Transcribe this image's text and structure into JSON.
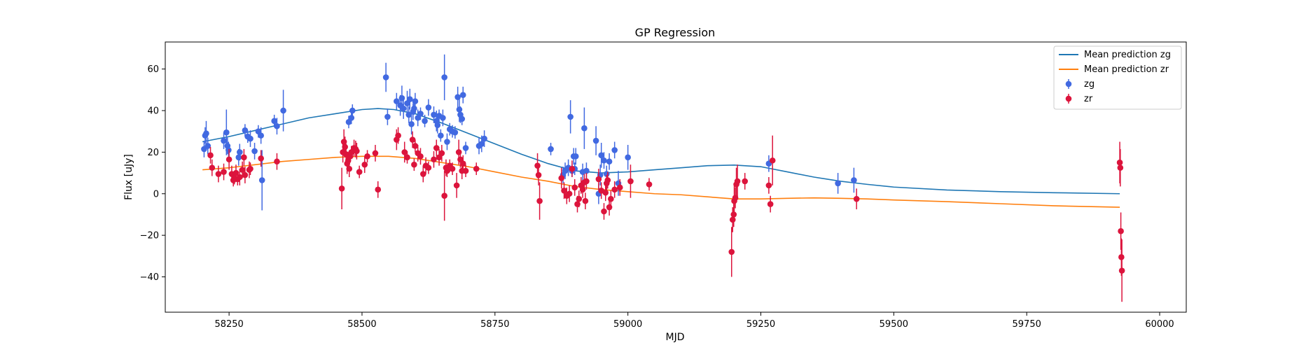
{
  "chart_data": {
    "type": "scatter",
    "title": "GP Regression",
    "xlabel": "MJD",
    "ylabel": "Flux [uJy]",
    "xlim": [
      58130,
      60050
    ],
    "ylim": [
      -57,
      73
    ],
    "xticks": [
      58250,
      58500,
      58750,
      59000,
      59250,
      59500,
      59750,
      60000
    ],
    "yticks": [
      -40,
      -20,
      0,
      20,
      40,
      60
    ],
    "grid": false,
    "legend": {
      "position": "top-right",
      "entries": [
        "Mean prediction zg",
        "Mean prediction zr",
        "zg",
        "zr"
      ]
    },
    "colors": {
      "zg_line": "#1f77b4",
      "zr_line": "#ff7f0e",
      "zg_points": "#4169e1",
      "zr_points": "#dc143c"
    },
    "lines": [
      {
        "name": "Mean prediction zg",
        "x": [
          58200,
          58250,
          58300,
          58350,
          58400,
          58450,
          58500,
          58530,
          58560,
          58600,
          58650,
          58700,
          58750,
          58800,
          58850,
          58900,
          58950,
          59000,
          59050,
          59100,
          59150,
          59200,
          59250,
          59300,
          59350,
          59400,
          59450,
          59500,
          59600,
          59700,
          59800,
          59925
        ],
        "y": [
          25,
          27.5,
          30.5,
          33.5,
          36.5,
          38.5,
          40.5,
          41,
          40.5,
          38.5,
          34,
          29,
          24,
          19,
          14.5,
          11,
          10,
          10.5,
          11.5,
          12.5,
          13.5,
          13.8,
          13,
          10.5,
          8,
          6,
          4.5,
          3.2,
          1.8,
          1,
          0.5,
          0
        ]
      },
      {
        "name": "Mean prediction zr",
        "x": [
          58200,
          58250,
          58300,
          58350,
          58400,
          58450,
          58500,
          58550,
          58600,
          58650,
          58700,
          58750,
          58800,
          58850,
          58900,
          58950,
          59000,
          59050,
          59100,
          59150,
          59200,
          59250,
          59300,
          59350,
          59400,
          59450,
          59500,
          59600,
          59700,
          59800,
          59925
        ],
        "y": [
          11.5,
          12.5,
          14,
          15.5,
          16.5,
          17.5,
          18,
          18,
          17,
          15,
          13,
          10.5,
          8,
          6,
          3.5,
          2,
          1,
          0,
          -0.5,
          -1.5,
          -2.5,
          -2.5,
          -2.2,
          -2,
          -2.2,
          -2.5,
          -3,
          -3.8,
          -4.8,
          -5.8,
          -6.5
        ]
      }
    ],
    "series": [
      {
        "name": "zg",
        "points": [
          [
            58203,
            21.5,
            4
          ],
          [
            58205,
            28,
            4
          ],
          [
            58207,
            29,
            6
          ],
          [
            58210,
            23,
            4
          ],
          [
            58240,
            25.5,
            4
          ],
          [
            58245,
            29.5,
            11
          ],
          [
            58247,
            23,
            4
          ],
          [
            58249,
            21,
            4
          ],
          [
            58268,
            17.5,
            4
          ],
          [
            58270,
            20,
            4
          ],
          [
            58280,
            30.5,
            3
          ],
          [
            58285,
            27.5,
            3
          ],
          [
            58290,
            26.5,
            4
          ],
          [
            58298,
            20.5,
            4
          ],
          [
            58305,
            30,
            3
          ],
          [
            58310,
            28,
            4
          ],
          [
            58312,
            6.5,
            14.5
          ],
          [
            58335,
            35,
            3
          ],
          [
            58340,
            32.5,
            4
          ],
          [
            58352,
            40,
            10
          ],
          [
            58475,
            34.5,
            3
          ],
          [
            58480,
            36.5,
            3
          ],
          [
            58482,
            40,
            3
          ],
          [
            58545,
            56,
            7
          ],
          [
            58548,
            37,
            4
          ],
          [
            58565,
            44.5,
            4
          ],
          [
            58572,
            42.5,
            5
          ],
          [
            58575,
            46,
            6
          ],
          [
            58578,
            41,
            5
          ],
          [
            58585,
            43.5,
            6
          ],
          [
            58588,
            38,
            4
          ],
          [
            58590,
            45.5,
            5
          ],
          [
            58593,
            33.5,
            5
          ],
          [
            58596,
            39.5,
            4
          ],
          [
            58598,
            41,
            3
          ],
          [
            58600,
            44.5,
            4
          ],
          [
            58605,
            36.5,
            4
          ],
          [
            58610,
            38.5,
            3
          ],
          [
            58618,
            35,
            3
          ],
          [
            58625,
            41.5,
            4
          ],
          [
            58635,
            38,
            4
          ],
          [
            58640,
            35,
            5
          ],
          [
            58642,
            33,
            4
          ],
          [
            58645,
            37.5,
            3
          ],
          [
            58648,
            28,
            3
          ],
          [
            58652,
            36.5,
            4
          ],
          [
            58655,
            56,
            11
          ],
          [
            58660,
            25,
            4
          ],
          [
            58665,
            31,
            3
          ],
          [
            58670,
            30,
            3
          ],
          [
            58675,
            29.5,
            3
          ],
          [
            58680,
            46.5,
            5
          ],
          [
            58683,
            40.5,
            6
          ],
          [
            58685,
            38,
            4
          ],
          [
            58688,
            36,
            3
          ],
          [
            58690,
            47.5,
            4
          ],
          [
            58695,
            22,
            3
          ],
          [
            58720,
            23,
            4
          ],
          [
            58725,
            24,
            4
          ],
          [
            58730,
            26.5,
            4
          ],
          [
            58855,
            21.5,
            3
          ],
          [
            58878,
            9,
            4
          ],
          [
            58882,
            11,
            4
          ],
          [
            58888,
            12.5,
            4
          ],
          [
            58892,
            37,
            8
          ],
          [
            58895,
            11,
            3
          ],
          [
            58898,
            18,
            4
          ],
          [
            58900,
            12,
            3
          ],
          [
            58902,
            18,
            4
          ],
          [
            58915,
            10.5,
            4
          ],
          [
            58918,
            31.5,
            10
          ],
          [
            58922,
            11,
            4
          ],
          [
            58940,
            25.5,
            7
          ],
          [
            58945,
            0,
            5
          ],
          [
            58948,
            9,
            5
          ],
          [
            58950,
            18.5,
            6
          ],
          [
            58955,
            16,
            4
          ],
          [
            58960,
            9.5,
            4
          ],
          [
            58965,
            15.5,
            4
          ],
          [
            58975,
            21,
            4
          ],
          [
            58982,
            5,
            6
          ],
          [
            59000,
            17.5,
            6
          ],
          [
            59265,
            14.5,
            4
          ],
          [
            59395,
            5,
            5
          ],
          [
            59425,
            6.5,
            6
          ]
        ]
      },
      {
        "name": "zr",
        "points": [
          [
            58215,
            18.5,
            4
          ],
          [
            58218,
            12.5,
            4
          ],
          [
            58230,
            9.5,
            4
          ],
          [
            58240,
            10.5,
            4
          ],
          [
            58250,
            16.5,
            5
          ],
          [
            58255,
            9.5,
            4
          ],
          [
            58258,
            6.5,
            3
          ],
          [
            58260,
            7.5,
            3
          ],
          [
            58263,
            10,
            4
          ],
          [
            58266,
            7,
            3
          ],
          [
            58270,
            8,
            4
          ],
          [
            58275,
            11.5,
            4
          ],
          [
            58278,
            17.5,
            4
          ],
          [
            58280,
            9,
            4
          ],
          [
            58288,
            11.5,
            4
          ],
          [
            58290,
            12,
            3
          ],
          [
            58310,
            17,
            4
          ],
          [
            58340,
            15.5,
            4
          ],
          [
            58462,
            2.5,
            10
          ],
          [
            58464,
            20,
            5
          ],
          [
            58466,
            25,
            6
          ],
          [
            58468,
            22.5,
            5
          ],
          [
            58470,
            19,
            5
          ],
          [
            58472,
            14.5,
            5
          ],
          [
            58474,
            16,
            4
          ],
          [
            58476,
            12,
            4
          ],
          [
            58478,
            18,
            3
          ],
          [
            58480,
            20,
            3
          ],
          [
            58485,
            22,
            4
          ],
          [
            58488,
            21.5,
            4
          ],
          [
            58490,
            20.5,
            4
          ],
          [
            58495,
            10.5,
            3
          ],
          [
            58505,
            14,
            4
          ],
          [
            58510,
            18,
            3
          ],
          [
            58525,
            19.5,
            4
          ],
          [
            58530,
            2,
            4
          ],
          [
            58565,
            26,
            5
          ],
          [
            58568,
            28,
            4
          ],
          [
            58580,
            20,
            5
          ],
          [
            58585,
            17.5,
            3
          ],
          [
            58595,
            26,
            4
          ],
          [
            58598,
            14,
            3
          ],
          [
            58600,
            23,
            3
          ],
          [
            58605,
            19.5,
            4
          ],
          [
            58610,
            18,
            4
          ],
          [
            58615,
            9.5,
            4
          ],
          [
            58620,
            13.5,
            4
          ],
          [
            58625,
            12.5,
            3
          ],
          [
            58635,
            16.5,
            4
          ],
          [
            58640,
            22,
            4
          ],
          [
            58645,
            17.5,
            4
          ],
          [
            58650,
            19.5,
            4
          ],
          [
            58655,
            -1,
            12
          ],
          [
            58658,
            12.5,
            4
          ],
          [
            58660,
            11,
            3
          ],
          [
            58665,
            13.5,
            3
          ],
          [
            58670,
            12,
            3
          ],
          [
            58678,
            4,
            6
          ],
          [
            58682,
            20,
            6
          ],
          [
            58685,
            16.5,
            4
          ],
          [
            58688,
            11,
            4
          ],
          [
            58690,
            14.5,
            4
          ],
          [
            58695,
            11,
            3
          ],
          [
            58715,
            12,
            3
          ],
          [
            58830,
            13.5,
            6
          ],
          [
            58832,
            9,
            5
          ],
          [
            58834,
            -3.5,
            9
          ],
          [
            58875,
            7.5,
            5
          ],
          [
            58880,
            1.5,
            4
          ],
          [
            58885,
            -1,
            4
          ],
          [
            58890,
            0,
            4
          ],
          [
            58895,
            12,
            4
          ],
          [
            58900,
            3,
            4
          ],
          [
            58905,
            -5,
            4
          ],
          [
            58908,
            -2.5,
            4
          ],
          [
            58912,
            4,
            4
          ],
          [
            58915,
            2,
            4
          ],
          [
            58918,
            5.5,
            4
          ],
          [
            58920,
            -3.5,
            4
          ],
          [
            58922,
            6,
            4
          ],
          [
            58945,
            7,
            5
          ],
          [
            58950,
            1.5,
            4
          ],
          [
            58955,
            -8.5,
            4
          ],
          [
            58958,
            0.5,
            4
          ],
          [
            58960,
            5,
            4
          ],
          [
            58962,
            6.5,
            4
          ],
          [
            58965,
            -6.5,
            4
          ],
          [
            58968,
            -2.5,
            4
          ],
          [
            58975,
            2,
            4
          ],
          [
            58985,
            3,
            4
          ],
          [
            59005,
            6,
            8
          ],
          [
            59040,
            4.5,
            3
          ],
          [
            59195,
            -28,
            12
          ],
          [
            59197,
            -12.5,
            6
          ],
          [
            59199,
            -10,
            6
          ],
          [
            59200,
            -3.5,
            8
          ],
          [
            59202,
            -2,
            5
          ],
          [
            59204,
            4.5,
            8
          ],
          [
            59206,
            6,
            8
          ],
          [
            59220,
            6,
            4
          ],
          [
            59265,
            4,
            4
          ],
          [
            59268,
            -5,
            4
          ],
          [
            59272,
            16,
            12
          ],
          [
            59430,
            -2.5,
            5
          ],
          [
            59925,
            15,
            10
          ],
          [
            59926,
            12.5,
            9
          ],
          [
            59927,
            -18,
            9
          ],
          [
            59928,
            -30.5,
            9
          ],
          [
            59929,
            -37,
            15
          ]
        ]
      }
    ]
  }
}
